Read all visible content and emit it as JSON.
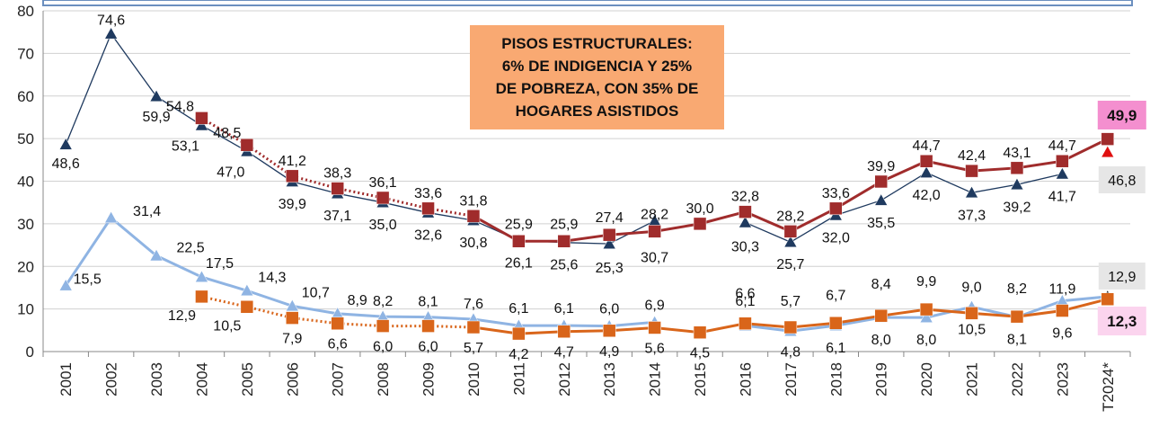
{
  "chart_data": {
    "type": "line",
    "categories": [
      "2001",
      "2002",
      "2003",
      "2004",
      "2005",
      "2006",
      "2007",
      "2008",
      "2009",
      "2010",
      "2011",
      "2012",
      "2013",
      "2014",
      "2015",
      "2016",
      "2017",
      "2018",
      "2019",
      "2020",
      "2021",
      "2022",
      "2023",
      "T2024*"
    ],
    "ylim": [
      0,
      80
    ],
    "yticks": [
      "0",
      "10",
      "20",
      "30",
      "40",
      "50",
      "60",
      "70",
      "80"
    ],
    "grid": true,
    "series": [
      {
        "key": "pov_old",
        "color": "#1f3a5f",
        "marker": "triangle",
        "line": "solid",
        "values": [
          48.6,
          74.6,
          59.9,
          53.1,
          47.0,
          39.9,
          37.1,
          35.0,
          32.6,
          30.8,
          26.1,
          25.6,
          25.3,
          30.7,
          null,
          30.3,
          25.7,
          32.0,
          35.5,
          42.0,
          37.3,
          39.2,
          41.7,
          null
        ],
        "labels": [
          "48,6",
          "74,6",
          "59,9",
          "53,1",
          "47,0",
          "39,9",
          "37,1",
          "35,0",
          "32,6",
          "30,8",
          "26,1",
          "25,6",
          "25,3",
          "30,7",
          "",
          "30,3",
          "25,7",
          "32,0",
          "35,5",
          "42,0",
          "37,3",
          "39,2",
          "41,7",
          ""
        ]
      },
      {
        "key": "pov_new",
        "color": "#a02c2c",
        "marker": "square",
        "line": "dotted-then-solid",
        "values": [
          null,
          null,
          null,
          54.8,
          48.5,
          41.2,
          38.3,
          36.1,
          33.6,
          31.8,
          25.9,
          25.9,
          27.4,
          28.2,
          30.0,
          32.8,
          28.2,
          33.6,
          39.9,
          44.7,
          42.4,
          43.1,
          44.7,
          49.9
        ],
        "labels": [
          "",
          "",
          "",
          "54,8",
          "48,5",
          "41,2",
          "38,3",
          "36,1",
          "33,6",
          "31,8",
          "25,9",
          "25,9",
          "27,4",
          "28,2",
          "30,0",
          "32,8",
          "28,2",
          "33,6",
          "39,9",
          "44,7",
          "42,4",
          "43,1",
          "44,7",
          "49,9"
        ]
      },
      {
        "key": "ind_old",
        "color": "#8fb4e3",
        "marker": "triangle",
        "line": "solid",
        "values": [
          15.5,
          31.4,
          22.5,
          17.5,
          14.3,
          10.7,
          8.9,
          8.2,
          8.1,
          7.6,
          6.1,
          6.1,
          6.0,
          6.9,
          null,
          6.1,
          4.8,
          6.1,
          8.0,
          8.0,
          10.5,
          8.1,
          11.9,
          12.9
        ],
        "labels": [
          "15,5",
          "31,4",
          "22,5",
          "17,5",
          "14,3",
          "10,7",
          "8,9",
          "8,2",
          "8,1",
          "7,6",
          "6,1",
          "6,1",
          "6,0",
          "6,9",
          "",
          "6,1",
          "4,8",
          "6,1",
          "8,0",
          "8,0",
          "10,5",
          "8,1",
          "11,9",
          "12,9"
        ]
      },
      {
        "key": "ind_new",
        "color": "#d9651a",
        "marker": "square",
        "line": "dotted-then-solid",
        "values": [
          null,
          null,
          null,
          12.9,
          10.5,
          7.9,
          6.6,
          6.0,
          6.0,
          5.7,
          4.2,
          4.7,
          4.9,
          5.6,
          4.5,
          6.6,
          5.7,
          6.7,
          8.4,
          9.9,
          9.0,
          8.2,
          9.6,
          12.3
        ],
        "labels": [
          "",
          "",
          "",
          "12,9",
          "10,5",
          "7,9",
          "6,6",
          "6,0",
          "6,0",
          "5,7",
          "4,2",
          "4,7",
          "4,9",
          "5,6",
          "4,5",
          "6,6",
          "5,7",
          "6,7",
          "8,4",
          "9,9",
          "9,0",
          "8,2",
          "9,6",
          "12,3"
        ]
      }
    ],
    "extra_points": [
      {
        "category": "T2024*",
        "value": 46.8,
        "label": "46,8",
        "marker": "triangle",
        "color": "#e01010"
      }
    ]
  },
  "annotation": {
    "lines": [
      "PISOS ESTRUCTURALES:",
      "6% DE INDIGENCIA Y 25%",
      "DE POBREZA, CON 35% DE",
      "HOGARES ASISTIDOS"
    ],
    "color": "#f9a972"
  },
  "highlight_colors": {
    "pink": "#f48fcf",
    "light_pink": "#fbd4ee",
    "grey": "#e6e6e6"
  }
}
